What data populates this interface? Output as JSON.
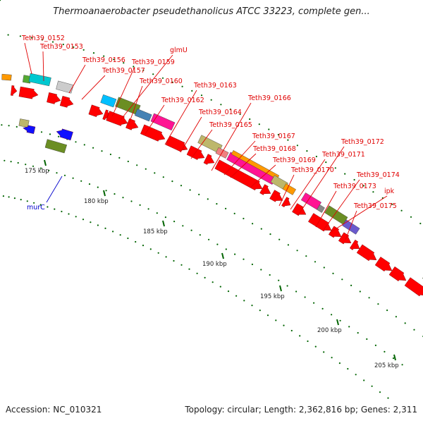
{
  "title": "Thermoanaerobacter pseudethanolicus ATCC 33223, complete gen...",
  "footer": {
    "accession": "Accession: NC_010321",
    "topology": "Topology: circular; Length: 2,362,816 bp; Genes: 2,311"
  },
  "colors": {
    "forward_cds": "#ff0000",
    "reverse_cds": "#1010ff",
    "backbone": "#888888",
    "label_red": "#e00000",
    "label_blue": "#0000cc",
    "tick": "#006400"
  },
  "scale_labels": [
    "175 kbp",
    "180 kbp",
    "185 kbp",
    "190 kbp",
    "195 kbp",
    "200 kbp",
    "205 kbp"
  ],
  "gene_labels": [
    "Teth39_0152",
    "Teth39_0153",
    "Teth39_0156",
    "Teth39_0157",
    "Teth39_0159",
    "glmU",
    "Teth39_0160",
    "Teth39_0162",
    "Teth39_0163",
    "Teth39_0164",
    "Teth39_0165",
    "Teth39_0166",
    "Teth39_0167",
    "Teth39_0168",
    "Teth39_0169",
    "Teth39_0170",
    "Teth39_0171",
    "Teth39_0172",
    "Teth39_0173",
    "Teth39_0174",
    "ipk",
    "Teth39_0175"
  ],
  "reverse_gene_labels": [
    "murC"
  ]
}
